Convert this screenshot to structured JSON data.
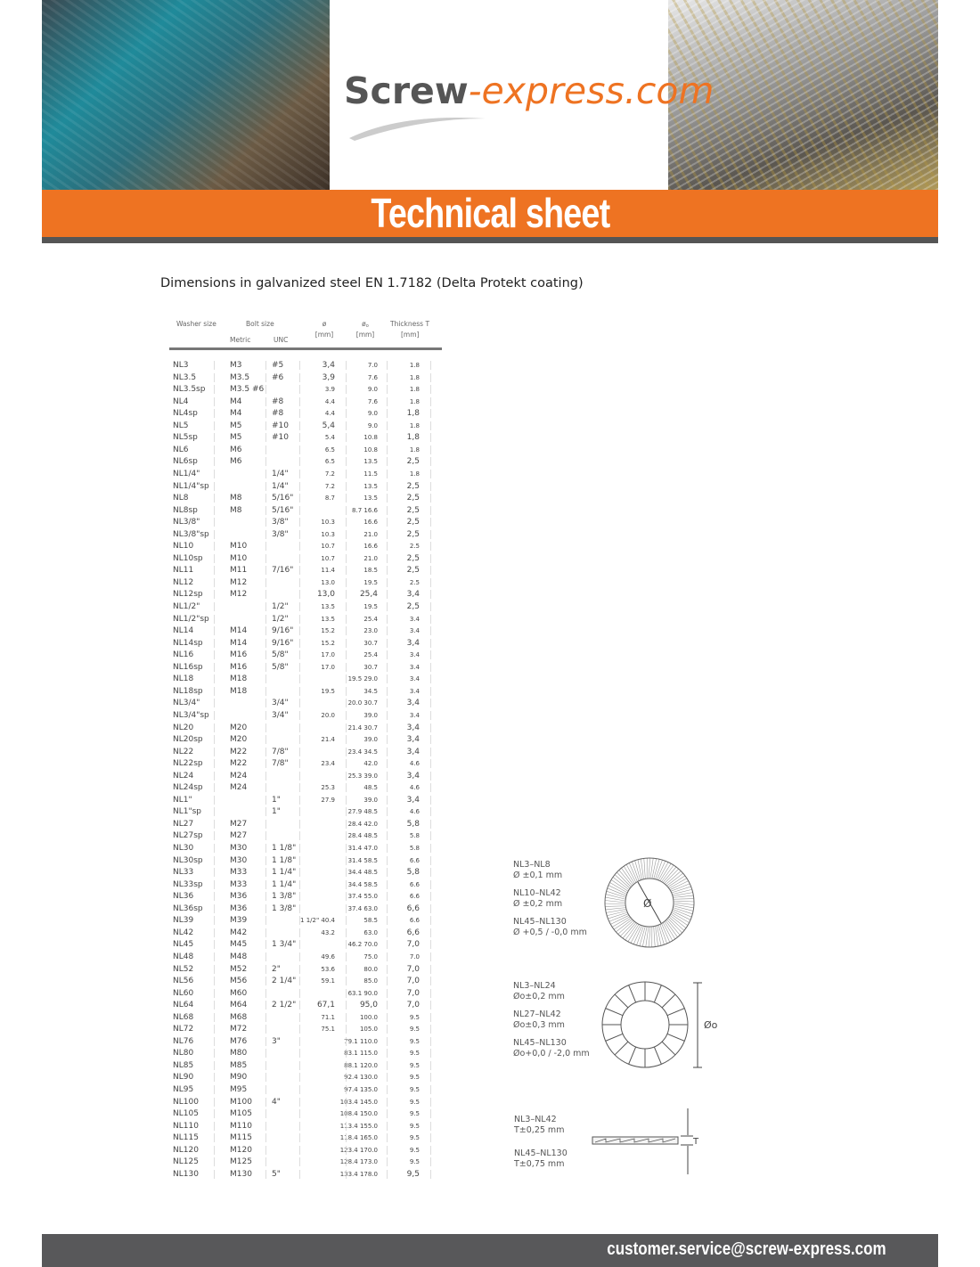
{
  "header": {
    "logo_main": "Screw",
    "logo_accent": "-express.com",
    "banner_title": "Technical sheet",
    "colors": {
      "accent": "#ee7322",
      "dark": "#555555"
    }
  },
  "subtitle": "Dimensions in galvanized steel EN 1.7182 (Delta Protekt coating)",
  "table": {
    "headers": {
      "washer_size": "Washer size",
      "bolt_size": "Bolt size",
      "metric": "Metric",
      "unc": "UNC",
      "d": "ø",
      "d_unit": "[mm]",
      "od": "ø",
      "od_sub": "o",
      "od_unit": "[mm]",
      "thickness": "Thickness T",
      "thickness_unit": "[mm]"
    },
    "rows": [
      [
        "NL3",
        "M3",
        "#5",
        "3,4",
        "7.0",
        "1.8"
      ],
      [
        "NL3.5",
        "M3.5",
        "#6",
        "3,9",
        "7.6",
        "1.8"
      ],
      [
        "NL3.5sp",
        "M3.5 #6",
        "",
        "3.9",
        "9.0",
        "1.8"
      ],
      [
        "NL4",
        "M4",
        "#8",
        "4.4",
        "7.6",
        "1.8"
      ],
      [
        "NL4sp",
        "M4",
        "#8",
        "4.4",
        "9.0",
        "1,8"
      ],
      [
        "NL5",
        "M5",
        "#10",
        "5,4",
        "9.0",
        "1.8"
      ],
      [
        "NL5sp",
        "M5",
        "#10",
        "5.4",
        "10.8",
        "1,8"
      ],
      [
        "NL6",
        "M6",
        "",
        "6.5",
        "10.8",
        "1.8"
      ],
      [
        "NL6sp",
        "M6",
        "",
        "6.5",
        "13.5",
        "2,5"
      ],
      [
        "NL1/4\"",
        "",
        "1/4\"",
        "7.2",
        "11.5",
        "1.8"
      ],
      [
        "NL1/4\"sp",
        "",
        "1/4\"",
        "7.2",
        "13.5",
        "2,5"
      ],
      [
        "NL8",
        "M8",
        "5/16\"",
        "8.7",
        "13.5",
        "2,5"
      ],
      [
        "NL8sp",
        "M8",
        "5/16\"",
        "",
        "8.7 16.6",
        "2,5"
      ],
      [
        "NL3/8\"",
        "",
        "3/8\"",
        "10.3",
        "16.6",
        "2,5"
      ],
      [
        "NL3/8\"sp",
        "",
        "3/8\"",
        "10.3",
        "21.0",
        "2,5"
      ],
      [
        "NL10",
        "M10",
        "",
        "10.7",
        "16.6",
        "2.5"
      ],
      [
        "NL10sp",
        "M10",
        "",
        "10.7",
        "21.0",
        "2,5"
      ],
      [
        "NL11",
        "M11",
        "7/16\"",
        "11.4",
        "18.5",
        "2,5"
      ],
      [
        "NL12",
        "M12",
        "",
        "13.0",
        "19.5",
        "2.5"
      ],
      [
        "NL12sp",
        "M12",
        "",
        "13,0",
        "25,4",
        "3,4"
      ],
      [
        "NL1/2\"",
        "",
        "1/2\"",
        "13.5",
        "19.5",
        "2,5"
      ],
      [
        "NL1/2\"sp",
        "",
        "1/2\"",
        "13.5",
        "25.4",
        "3.4"
      ],
      [
        "NL14",
        "M14",
        "9/16\"",
        "15.2",
        "23.0",
        "3.4"
      ],
      [
        "NL14sp",
        "M14",
        "9/16\"",
        "15.2",
        "30.7",
        "3,4"
      ],
      [
        "NL16",
        "M16",
        "5/8\"",
        "17.0",
        "25.4",
        "3.4"
      ],
      [
        "NL16sp",
        "M16",
        "5/8\"",
        "17.0",
        "30.7",
        "3.4"
      ],
      [
        "NL18",
        "M18",
        "",
        "",
        "19.5 29.0",
        "3.4"
      ],
      [
        "NL18sp",
        "M18",
        "",
        "19.5",
        "34.5",
        "3.4"
      ],
      [
        "NL3/4\"",
        "",
        "3/4\"",
        "",
        "20.0 30.7",
        "3,4"
      ],
      [
        "NL3/4\"sp",
        "",
        "3/4\"",
        "20.0",
        "39.0",
        "3.4"
      ],
      [
        "NL20",
        "M20",
        "",
        "",
        "21.4 30.7",
        "3,4"
      ],
      [
        "NL20sp",
        "M20",
        "",
        "21.4",
        "39.0",
        "3,4"
      ],
      [
        "NL22",
        "M22",
        "7/8\"",
        "",
        "23.4 34.5",
        "3,4"
      ],
      [
        "NL22sp",
        "M22",
        "7/8\"",
        "23.4",
        "42.0",
        "4.6"
      ],
      [
        "NL24",
        "M24",
        "",
        "",
        "25.3 39.0",
        "3,4"
      ],
      [
        "NL24sp",
        "M24",
        "",
        "25.3",
        "48.5",
        "4.6"
      ],
      [
        "NL1\"",
        "",
        "1\"",
        "27.9",
        "39.0",
        "3,4"
      ],
      [
        "NL1\"sp",
        "",
        "1\"",
        "",
        "27.9 48.5",
        "4.6"
      ],
      [
        "NL27",
        "M27",
        "",
        "",
        "28.4 42.0",
        "5,8"
      ],
      [
        "NL27sp",
        "M27",
        "",
        "",
        "28.4 48.5",
        "5.8"
      ],
      [
        "NL30",
        "M30",
        "1 1/8\"",
        "",
        "31.4 47.0",
        "5.8"
      ],
      [
        "NL30sp",
        "M30",
        "1 1/8\"",
        "",
        "31.4 58.5",
        "6.6"
      ],
      [
        "NL33",
        "M33",
        "1 1/4\"",
        "",
        "34.4 48.5",
        "5,8"
      ],
      [
        "NL33sp",
        "M33",
        "1 1/4\"",
        "",
        "34.4 58.5",
        "6.6"
      ],
      [
        "NL36",
        "M36",
        "1 3/8\"",
        "",
        "37.4 55.0",
        "6.6"
      ],
      [
        "NL36sp",
        "M36",
        "1 3/8\"",
        "",
        "37.4 63.0",
        "6,6"
      ],
      [
        "NL39",
        "M39",
        "",
        "1 1/2\" 40.4",
        "58.5",
        "6.6"
      ],
      [
        "NL42",
        "M42",
        "",
        "43.2",
        "63.0",
        "6,6"
      ],
      [
        "NL45",
        "M45",
        "1 3/4\"",
        "",
        "46.2 70.0",
        "7,0"
      ],
      [
        "NL48",
        "M48",
        "",
        "49.6",
        "75.0",
        "7.0"
      ],
      [
        "NL52",
        "M52",
        "2\"",
        "53.6",
        "80.0",
        "7,0"
      ],
      [
        "NL56",
        "M56",
        "2 1/4\"",
        "59.1",
        "85.0",
        "7,0"
      ],
      [
        "NL60",
        "M60",
        "",
        "",
        "63.1 90.0",
        "7,0"
      ],
      [
        "NL64",
        "M64",
        "2 1/2\"",
        "67,1",
        "95,0",
        "7,0"
      ],
      [
        "NL68",
        "M68",
        "",
        "71.1",
        "100.0",
        "9.5"
      ],
      [
        "NL72",
        "M72",
        "",
        "75.1",
        "105.0",
        "9.5"
      ],
      [
        "NL76",
        "M76",
        "3\"",
        "",
        "79.1 110.0",
        "9.5"
      ],
      [
        "NL80",
        "M80",
        "",
        "",
        "83.1 115.0",
        "9.5"
      ],
      [
        "NL85",
        "M85",
        "",
        "",
        "88.1 120.0",
        "9.5"
      ],
      [
        "NL90",
        "M90",
        "",
        "",
        "92.4 130.0",
        "9.5"
      ],
      [
        "NL95",
        "M95",
        "",
        "",
        "97.4 135.0",
        "9.5"
      ],
      [
        "NL100",
        "M100",
        "4\"",
        "",
        "103.4 145.0",
        "9.5"
      ],
      [
        "NL105",
        "M105",
        "",
        "",
        "108.4 150.0",
        "9.5"
      ],
      [
        "NL110",
        "M110",
        "",
        "",
        "113.4 155.0",
        "9.5"
      ],
      [
        "NL115",
        "M115",
        "",
        "",
        "118.4 165.0",
        "9.5"
      ],
      [
        "NL120",
        "M120",
        "",
        "",
        "123.4 170.0",
        "9.5"
      ],
      [
        "NL125",
        "M125",
        "",
        "",
        "128.4 173.0",
        "9.5"
      ],
      [
        "NL130",
        "M130",
        "5\"",
        "",
        "133.4 178.0",
        "9,5"
      ]
    ]
  },
  "diagrams": {
    "inner": {
      "symbol": "Ø",
      "notes": [
        "NL3–NL8",
        "Ø ±0,1 mm",
        "NL10–NL42",
        "Ø ±0,2 mm",
        "NL45–NL130",
        "Ø +0,5 / -0,0 mm"
      ]
    },
    "outer": {
      "symbol": "Øo",
      "notes": [
        "NL3–NL24",
        "Øo±0,2 mm",
        "NL27–NL42",
        "Øo±0,3 mm",
        "NL45–NL130",
        "Øo+0,0 / -2,0 mm"
      ]
    },
    "thickness": {
      "symbol": "T",
      "notes": [
        "NL3–NL42",
        "T±0,25 mm",
        "NL45–NL130",
        "T±0,75 mm"
      ]
    }
  },
  "footer": {
    "email": "customer.service@screw-express.com"
  }
}
